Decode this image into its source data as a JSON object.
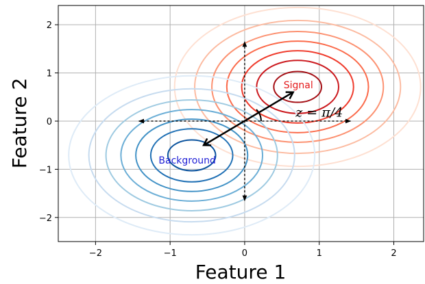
{
  "chart_data": {
    "type": "contour",
    "xlabel": "Feature 1",
    "ylabel": "Feature 2",
    "xlim": [
      -2.5,
      2.4
    ],
    "ylim": [
      -2.5,
      2.4
    ],
    "xticks": [
      -2,
      -1,
      0,
      1,
      2
    ],
    "yticks": [
      -2,
      -1,
      0,
      1,
      2
    ],
    "xtick_labels": [
      "−2",
      "−1",
      "0",
      "1",
      "2"
    ],
    "ytick_labels": [
      "−2",
      "−1",
      "0",
      "1",
      "2"
    ],
    "grid": true,
    "distributions": [
      {
        "name": "Signal",
        "center": [
          0.71,
          0.71
        ],
        "colormap": "Reds",
        "label_color": "#e41a1c",
        "contour_radii": [
          0.32,
          0.55,
          0.75,
          0.95,
          1.15,
          1.38,
          1.65
        ],
        "contour_colors": [
          "#a50f15",
          "#cb181d",
          "#ef3b2c",
          "#fb6a4a",
          "#fc9272",
          "#fcbba1",
          "#fee0d2"
        ]
      },
      {
        "name": "Background",
        "center": [
          -0.71,
          -0.71
        ],
        "colormap": "Blues",
        "label_color": "#1f1fd6",
        "contour_radii": [
          0.32,
          0.55,
          0.75,
          0.95,
          1.15,
          1.38,
          1.65
        ],
        "contour_colors": [
          "#08519c",
          "#2171b5",
          "#4292c6",
          "#6baed6",
          "#9ecae1",
          "#c6dbef",
          "#deebf7"
        ]
      }
    ],
    "dotted_axes": {
      "horizontal": {
        "from": [
          -1.42,
          0
        ],
        "to": [
          1.42,
          0
        ]
      },
      "vertical": {
        "from": [
          0,
          -1.65
        ],
        "to": [
          0,
          1.65
        ]
      }
    },
    "z_arrow": {
      "from": [
        -0.55,
        -0.5
      ],
      "to": [
        0.65,
        0.6
      ]
    },
    "z_label": "z = π/4",
    "z_label_pos": [
      1.0,
      0.18
    ],
    "signal_label_pos": [
      0.72,
      0.75
    ],
    "background_label_pos": [
      -0.77,
      -0.81
    ]
  }
}
